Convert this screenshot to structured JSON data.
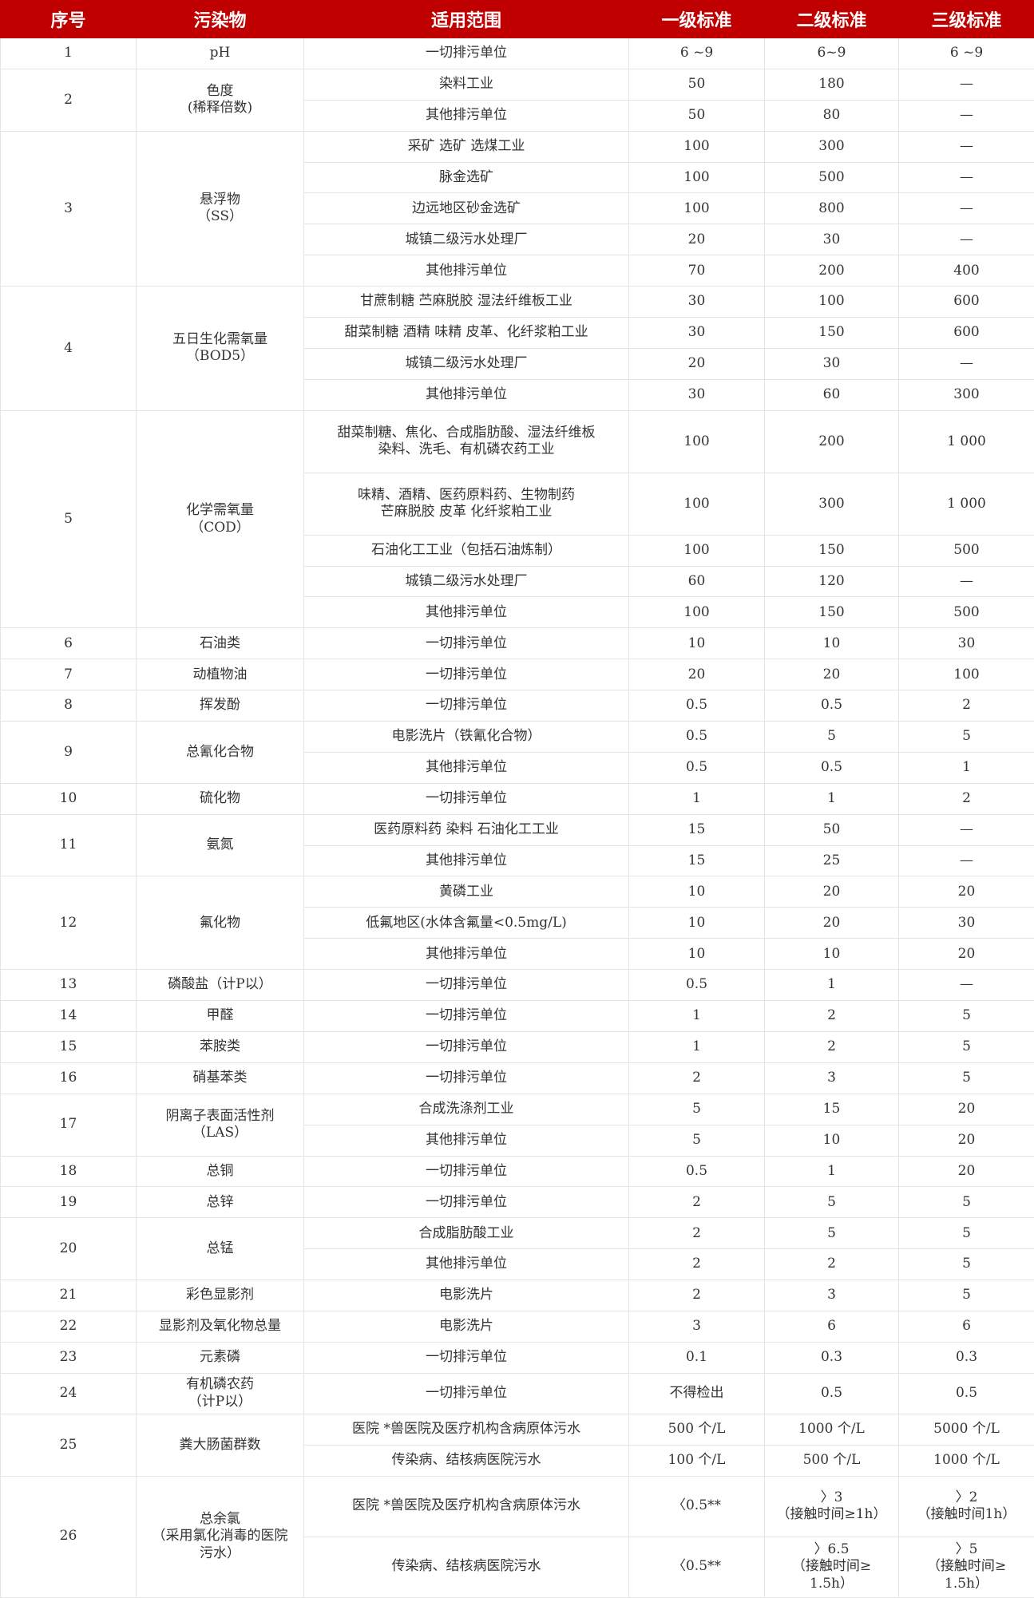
{
  "header": {
    "no": "序号",
    "pollutant": "污染物",
    "scope": "适用范围",
    "level1": "一级标准",
    "level2": "二级标准",
    "level3": "三级标准"
  },
  "accent_color": "#c00000",
  "groups": [
    {
      "no": "1",
      "pollutant": "pH",
      "items": [
        {
          "scope": "一切排污单位",
          "l1": "6 ~9",
          "l2": "6~9",
          "l3": "6 ~9"
        }
      ]
    },
    {
      "no": "2",
      "pollutant": "色度\n(稀释倍数)",
      "items": [
        {
          "scope": "染料工业",
          "l1": "50",
          "l2": "180",
          "l3": "—"
        },
        {
          "scope": "其他排污单位",
          "l1": "50",
          "l2": "80",
          "l3": "—"
        }
      ]
    },
    {
      "no": "3",
      "pollutant": "悬浮物\n（SS）",
      "items": [
        {
          "scope": "采矿 选矿 选煤工业",
          "l1": "100",
          "l2": "300",
          "l3": "—"
        },
        {
          "scope": "脉金选矿",
          "l1": "100",
          "l2": "500",
          "l3": "—"
        },
        {
          "scope": "边远地区砂金选矿",
          "l1": "100",
          "l2": "800",
          "l3": "—"
        },
        {
          "scope": "城镇二级污水处理厂",
          "l1": "20",
          "l2": "30",
          "l3": "—"
        },
        {
          "scope": "其他排污单位",
          "l1": "70",
          "l2": "200",
          "l3": "400"
        }
      ]
    },
    {
      "no": "4",
      "pollutant": "五日生化需氧量\n（BOD5）",
      "items": [
        {
          "scope": "甘蔗制糖 苎麻脱胶 湿法纤维板工业",
          "l1": "30",
          "l2": "100",
          "l3": "600"
        },
        {
          "scope": "甜菜制糖 酒精 味精 皮革、化纤浆粕工业",
          "l1": "30",
          "l2": "150",
          "l3": "600"
        },
        {
          "scope": "城镇二级污水处理厂",
          "l1": "20",
          "l2": "30",
          "l3": "—"
        },
        {
          "scope": "其他排污单位",
          "l1": "30",
          "l2": "60",
          "l3": "300"
        }
      ]
    },
    {
      "no": "5",
      "pollutant": "化学需氧量\n（COD）",
      "items": [
        {
          "scope": "甜菜制糖、焦化、合成脂肪酸、湿法纤维板\n染料、洗毛、有机磷农药工业",
          "l1": "100",
          "l2": "200",
          "l3": "1 000"
        },
        {
          "scope": "味精、酒精、医药原料药、生物制药\n芒麻脱胶 皮革 化纤浆粕工业",
          "l1": "100",
          "l2": "300",
          "l3": "1 000"
        },
        {
          "scope": "石油化工工业（包括石油炼制）",
          "l1": "100",
          "l2": "150",
          "l3": "500"
        },
        {
          "scope": "城镇二级污水处理厂",
          "l1": "60",
          "l2": "120",
          "l3": "—"
        },
        {
          "scope": "其他排污单位",
          "l1": "100",
          "l2": "150",
          "l3": "500"
        }
      ]
    },
    {
      "no": "6",
      "pollutant": "石油类",
      "items": [
        {
          "scope": "一切排污单位",
          "l1": "10",
          "l2": "10",
          "l3": "30"
        }
      ]
    },
    {
      "no": "7",
      "pollutant": "动植物油",
      "items": [
        {
          "scope": "一切排污单位",
          "l1": "20",
          "l2": "20",
          "l3": "100"
        }
      ]
    },
    {
      "no": "8",
      "pollutant": "挥发酚",
      "items": [
        {
          "scope": "一切排污单位",
          "l1": "0.5",
          "l2": "0.5",
          "l3": "2"
        }
      ]
    },
    {
      "no": "9",
      "pollutant": "总氰化合物",
      "items": [
        {
          "scope": "电影洗片（铁氰化合物）",
          "l1": "0.5",
          "l2": "5",
          "l3": "5"
        },
        {
          "scope": "其他排污单位",
          "l1": "0.5",
          "l2": "0.5",
          "l3": "1"
        }
      ]
    },
    {
      "no": "10",
      "pollutant": "硫化物",
      "items": [
        {
          "scope": "一切排污单位",
          "l1": "1",
          "l2": "1",
          "l3": "2"
        }
      ]
    },
    {
      "no": "11",
      "pollutant": "氨氮",
      "items": [
        {
          "scope": "医药原料药 染料 石油化工工业",
          "l1": "15",
          "l2": "50",
          "l3": "—"
        },
        {
          "scope": "其他排污单位",
          "l1": "15",
          "l2": "25",
          "l3": "—"
        }
      ]
    },
    {
      "no": "12",
      "pollutant": "氟化物",
      "items": [
        {
          "scope": "黄磷工业",
          "l1": "10",
          "l2": "20",
          "l3": "20"
        },
        {
          "scope": "低氟地区(水体含氟量<0.5mg/L)",
          "l1": "10",
          "l2": "20",
          "l3": "30"
        },
        {
          "scope": "其他排污单位",
          "l1": "10",
          "l2": "10",
          "l3": "20"
        }
      ]
    },
    {
      "no": "13",
      "pollutant": "磷酸盐（计P以）",
      "items": [
        {
          "scope": "一切排污单位",
          "l1": "0.5",
          "l2": "1",
          "l3": "—"
        }
      ]
    },
    {
      "no": "14",
      "pollutant": "甲醛",
      "items": [
        {
          "scope": "一切排污单位",
          "l1": "1",
          "l2": "2",
          "l3": "5"
        }
      ]
    },
    {
      "no": "15",
      "pollutant": "苯胺类",
      "items": [
        {
          "scope": "一切排污单位",
          "l1": "1",
          "l2": "2",
          "l3": "5"
        }
      ]
    },
    {
      "no": "16",
      "pollutant": "硝基苯类",
      "items": [
        {
          "scope": "一切排污单位",
          "l1": "2",
          "l2": "3",
          "l3": "5"
        }
      ]
    },
    {
      "no": "17",
      "pollutant": "阴离子表面活性剂\n（LAS）",
      "items": [
        {
          "scope": "合成洗涤剂工业",
          "l1": "5",
          "l2": "15",
          "l3": "20"
        },
        {
          "scope": "其他排污单位",
          "l1": "5",
          "l2": "10",
          "l3": "20"
        }
      ]
    },
    {
      "no": "18",
      "pollutant": "总铜",
      "items": [
        {
          "scope": "一切排污单位",
          "l1": "0.5",
          "l2": "1",
          "l3": "20"
        }
      ]
    },
    {
      "no": "19",
      "pollutant": "总锌",
      "items": [
        {
          "scope": "一切排污单位",
          "l1": "2",
          "l2": "5",
          "l3": "5"
        }
      ]
    },
    {
      "no": "20",
      "pollutant": "总锰",
      "items": [
        {
          "scope": "合成脂肪酸工业",
          "l1": "2",
          "l2": "5",
          "l3": "5"
        },
        {
          "scope": "其他排污单位",
          "l1": "2",
          "l2": "2",
          "l3": "5"
        }
      ]
    },
    {
      "no": "21",
      "pollutant": "彩色显影剂",
      "items": [
        {
          "scope": "电影洗片",
          "l1": "2",
          "l2": "3",
          "l3": "5"
        }
      ]
    },
    {
      "no": "22",
      "pollutant": "显影剂及氧化物总量",
      "items": [
        {
          "scope": "电影洗片",
          "l1": "3",
          "l2": "6",
          "l3": "6"
        }
      ]
    },
    {
      "no": "23",
      "pollutant": "元素磷",
      "items": [
        {
          "scope": "一切排污单位",
          "l1": "0.1",
          "l2": "0.3",
          "l3": "0.3"
        }
      ]
    },
    {
      "no": "24",
      "pollutant": "有机磷农药\n（计P以）",
      "items": [
        {
          "scope": "一切排污单位",
          "l1": "不得检出",
          "l2": "0.5",
          "l3": "0.5"
        }
      ]
    },
    {
      "no": "25",
      "pollutant": "粪大肠菌群数",
      "items": [
        {
          "scope": "医院 *兽医院及医疗机构含病原体污水",
          "l1": "500 个/L",
          "l2": "1000 个/L",
          "l3": "5000 个/L"
        },
        {
          "scope": "传染病、结核病医院污水",
          "l1": "100 个/L",
          "l2": "500 个/L",
          "l3": "1000 个/L"
        }
      ]
    },
    {
      "no": "26",
      "pollutant": "总余氯\n（采用氯化消毒的医院\n污水）",
      "items": [
        {
          "scope": "医院 *兽医院及医疗机构含病原体污水",
          "l1": "〈0.5**",
          "l2": "〉3\n（接触时间≥1h）",
          "l3": "〉2\n（接触时间1h）"
        },
        {
          "scope": "传染病、结核病医院污水",
          "l1": "〈0.5**",
          "l2": "〉6.5\n（接触时间≥\n1.5h）",
          "l3": "〉5\n（接触时间≥\n1.5h）"
        }
      ]
    }
  ]
}
